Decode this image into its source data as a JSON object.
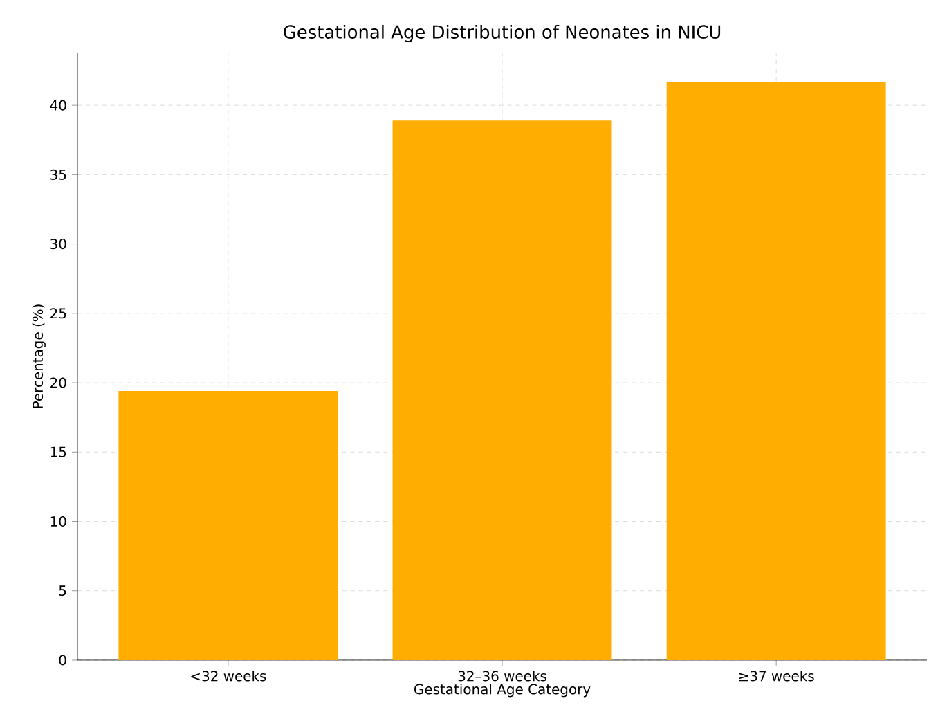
{
  "chart_data": {
    "type": "bar",
    "title": "Gestational Age Distribution of Neonates in NICU",
    "xlabel": "Gestational Age Category",
    "ylabel": "Percentage (%)",
    "categories": [
      "<32 weeks",
      "32–36 weeks",
      "≥37 weeks"
    ],
    "values": [
      19.4,
      38.9,
      41.7
    ],
    "color": "#ffad00",
    "ylim": [
      0,
      43.8
    ],
    "yticks": [
      0,
      5,
      10,
      15,
      20,
      25,
      30,
      35,
      40
    ],
    "grid": true
  }
}
